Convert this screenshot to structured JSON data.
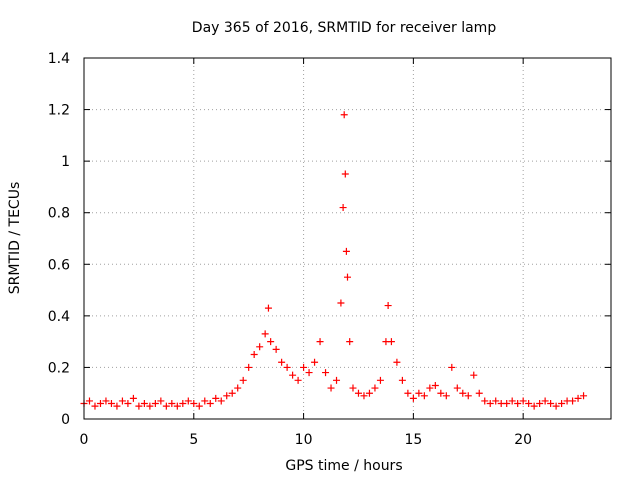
{
  "chart_data": {
    "type": "scatter",
    "title": "Day 365 of 2016, SRMTID for receiver lamp",
    "xlabel": "GPS time / hours",
    "ylabel": "SRMTID / TECUs",
    "xlim": [
      0,
      24
    ],
    "ylim": [
      0,
      1.4
    ],
    "x_ticks": [
      0,
      5,
      10,
      15,
      20
    ],
    "x_tick_labels": [
      "0",
      "5",
      "10",
      "15",
      "20"
    ],
    "y_ticks": [
      0,
      0.2,
      0.4,
      0.6,
      0.8,
      1.0,
      1.2,
      1.4
    ],
    "y_tick_labels": [
      "0",
      "0.2",
      "0.4",
      "0.6",
      "0.8",
      "1",
      "1.2",
      "1.4"
    ],
    "grid": true,
    "marker": "+",
    "color": "#ff0000",
    "series": [
      {
        "name": "SRMTID",
        "x": [
          0.0,
          0.25,
          0.5,
          0.75,
          1.0,
          1.25,
          1.5,
          1.75,
          2.0,
          2.25,
          2.5,
          2.75,
          3.0,
          3.25,
          3.5,
          3.75,
          4.0,
          4.25,
          4.5,
          4.75,
          5.0,
          5.25,
          5.5,
          5.75,
          6.0,
          6.25,
          6.5,
          6.75,
          7.0,
          7.25,
          7.5,
          7.75,
          8.0,
          8.25,
          8.4,
          8.5,
          8.75,
          9.0,
          9.25,
          9.5,
          9.75,
          10.0,
          10.25,
          10.5,
          10.75,
          11.0,
          11.25,
          11.5,
          11.7,
          11.8,
          11.85,
          11.9,
          11.95,
          12.0,
          12.1,
          12.25,
          12.5,
          12.75,
          13.0,
          13.25,
          13.5,
          13.75,
          13.85,
          14.0,
          14.25,
          14.5,
          14.75,
          15.0,
          15.25,
          15.5,
          15.75,
          16.0,
          16.25,
          16.5,
          16.75,
          17.0,
          17.25,
          17.5,
          17.75,
          18.0,
          18.25,
          18.5,
          18.75,
          19.0,
          19.25,
          19.5,
          19.75,
          20.0,
          20.25,
          20.5,
          20.75,
          21.0,
          21.25,
          21.5,
          21.75,
          22.0,
          22.25,
          22.5,
          22.75
        ],
        "y": [
          0.06,
          0.07,
          0.05,
          0.06,
          0.07,
          0.06,
          0.05,
          0.07,
          0.06,
          0.08,
          0.05,
          0.06,
          0.05,
          0.06,
          0.07,
          0.05,
          0.06,
          0.05,
          0.06,
          0.07,
          0.06,
          0.05,
          0.07,
          0.06,
          0.08,
          0.07,
          0.09,
          0.1,
          0.12,
          0.15,
          0.2,
          0.25,
          0.28,
          0.33,
          0.43,
          0.3,
          0.27,
          0.22,
          0.2,
          0.17,
          0.15,
          0.2,
          0.18,
          0.22,
          0.3,
          0.18,
          0.12,
          0.15,
          0.45,
          0.82,
          1.18,
          0.95,
          0.65,
          0.55,
          0.3,
          0.12,
          0.1,
          0.09,
          0.1,
          0.12,
          0.15,
          0.3,
          0.44,
          0.3,
          0.22,
          0.15,
          0.1,
          0.08,
          0.1,
          0.09,
          0.12,
          0.13,
          0.1,
          0.09,
          0.2,
          0.12,
          0.1,
          0.09,
          0.17,
          0.1,
          0.07,
          0.06,
          0.07,
          0.06,
          0.06,
          0.07,
          0.06,
          0.07,
          0.06,
          0.05,
          0.06,
          0.07,
          0.06,
          0.05,
          0.06,
          0.07,
          0.07,
          0.08,
          0.09
        ]
      }
    ]
  }
}
